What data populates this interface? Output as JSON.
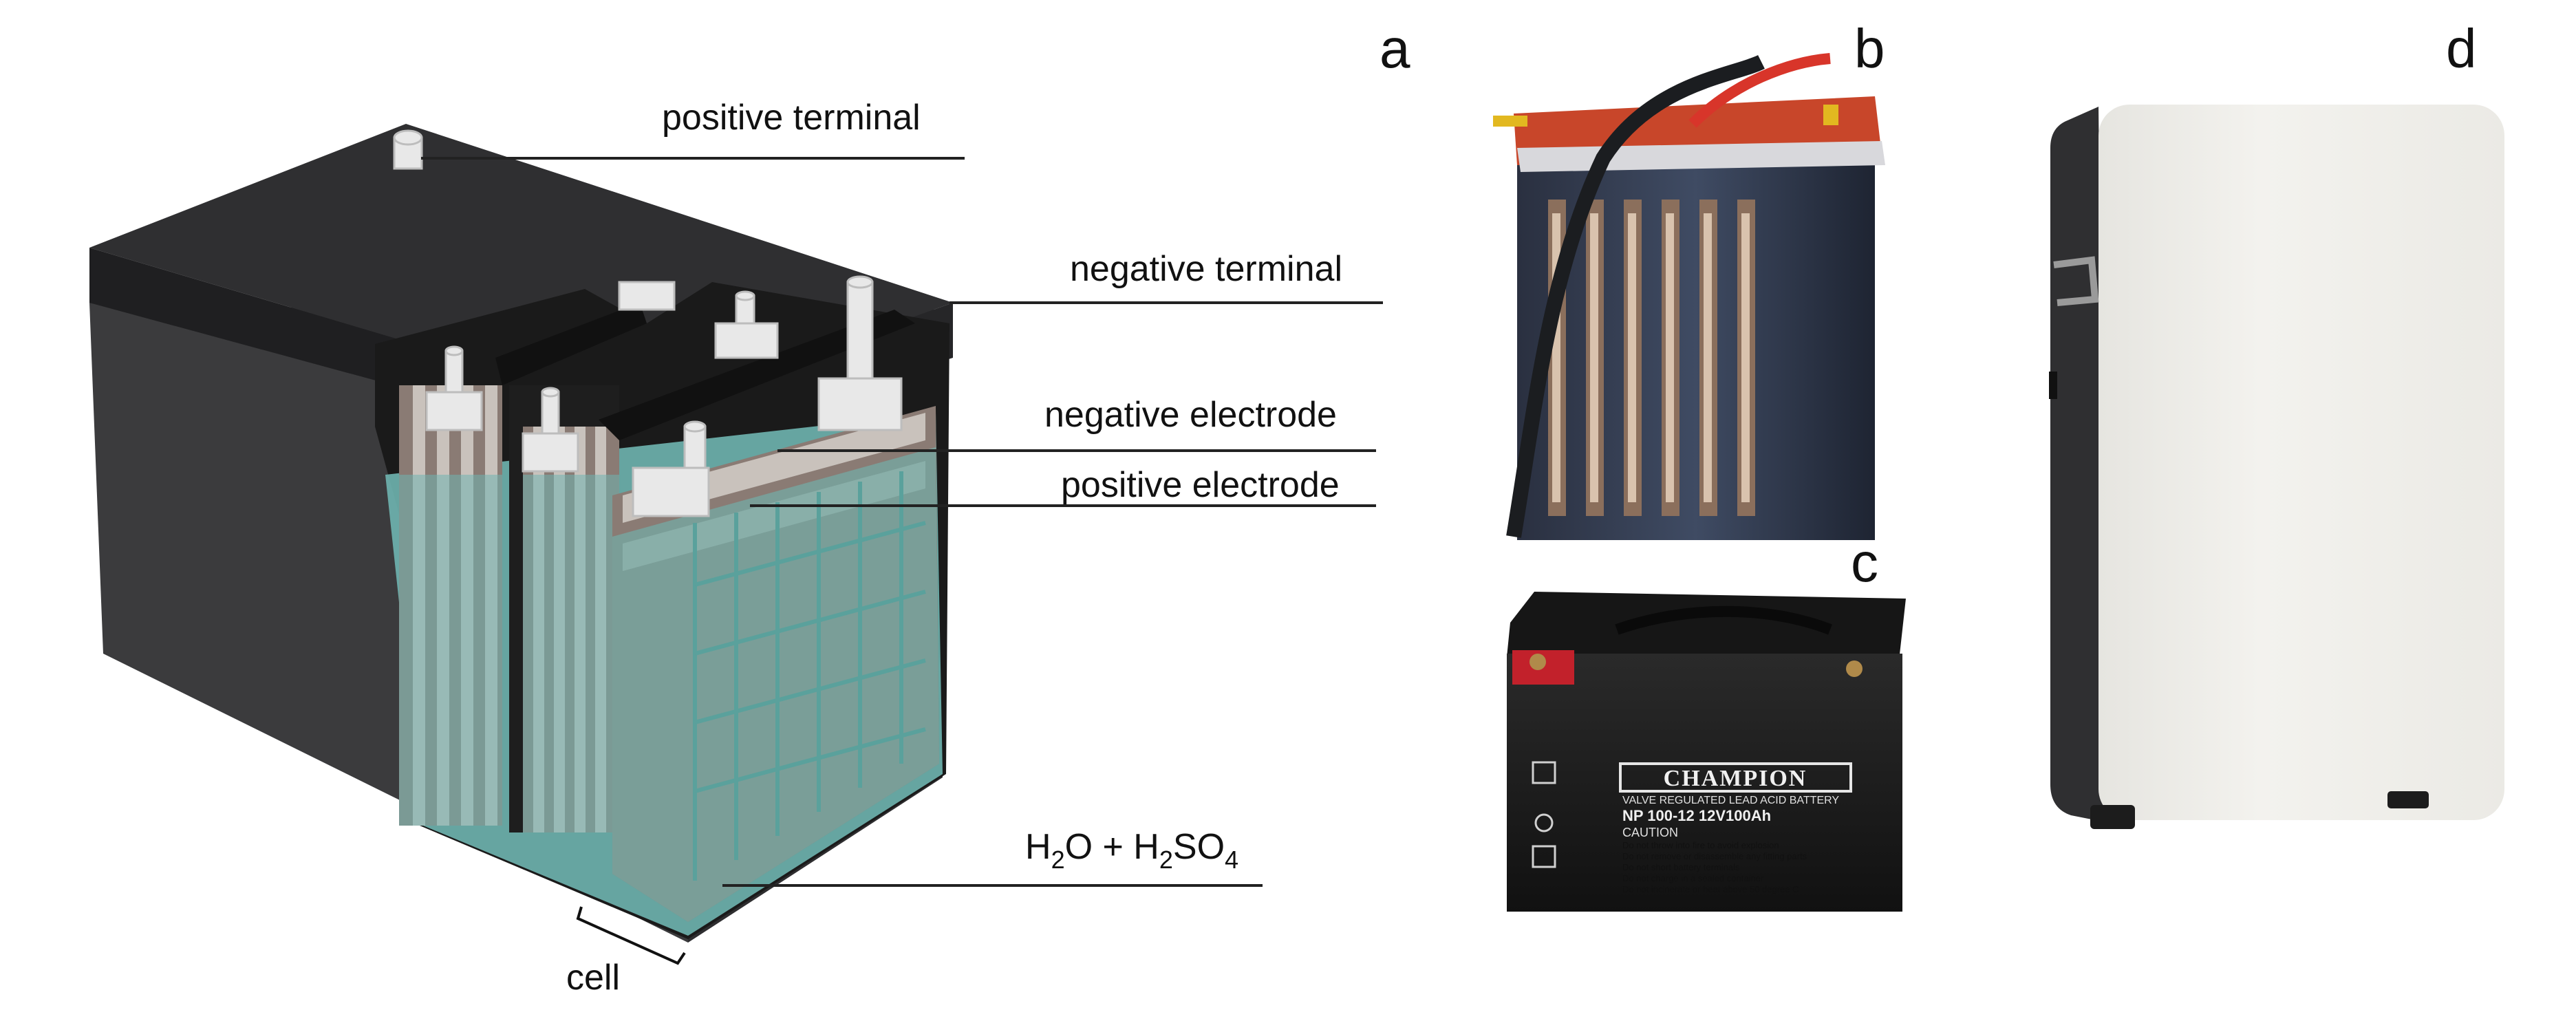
{
  "panels": {
    "a": "a",
    "b": "b",
    "c": "c",
    "d": "d"
  },
  "labels": {
    "positive_terminal": "positive terminal",
    "negative_terminal": "negative terminal",
    "negative_electrode": "negative electrode",
    "positive_electrode": "positive electrode",
    "electrolyte": {
      "h": "H",
      "sub2": "2",
      "o_plus_h": "O + H",
      "sub2b": "2",
      "so": "SO",
      "sub4": "4"
    },
    "cell": "cell"
  },
  "battery_c_label": {
    "brand": "CHAMPION",
    "type": "VALVE REGULATED LEAD ACID BATTERY",
    "model": "NP  100-12   12V100Ah",
    "caution_title": "CAUTION",
    "cautions": [
      "Do not throw into fire to avoid explosion",
      "Do not remove or disassemble any fitting parts",
      "Do not short battery terminals",
      "Do not charge in a sealed container",
      "Do not incinerate or heat above 50 degree C"
    ]
  },
  "colors": {
    "case": "#3b3b3d",
    "case_top": "#2b2b2d",
    "electrolyte": "#6fb5b0",
    "electrode_brown": "#8a7b74",
    "terminal": "#e8e8e8",
    "cabinet_front": "#efeeea",
    "cabinet_side": "#2f2f31"
  }
}
